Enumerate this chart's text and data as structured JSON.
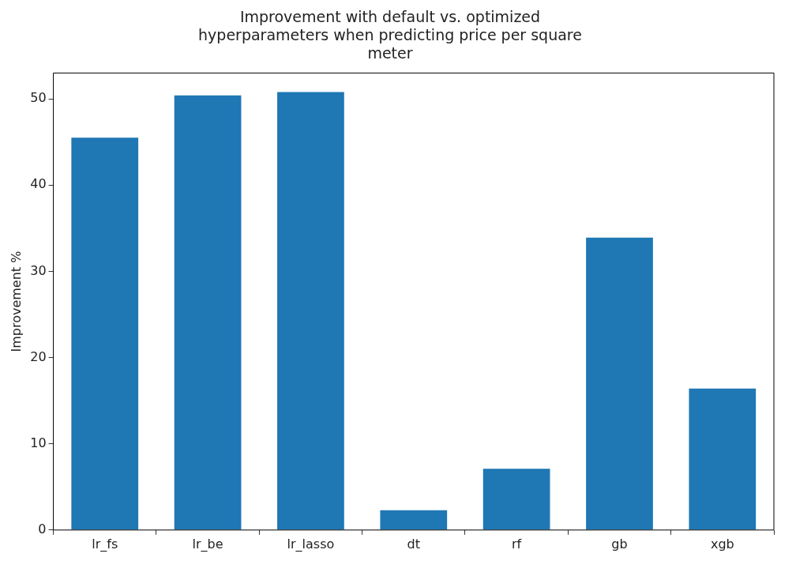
{
  "chart_data": {
    "type": "bar",
    "title": "Improvement with default vs. optimized hyperparameters when predicting price per square meter",
    "ylabel": "Improvement %",
    "categories": [
      "lr_fs",
      "lr_be",
      "lr_lasso",
      "dt",
      "rf",
      "gb",
      "xgb"
    ],
    "values": [
      45.5,
      50.4,
      50.8,
      2.3,
      7.1,
      33.9,
      16.4
    ],
    "color": "#1f77b4",
    "ylim": [
      0,
      53
    ],
    "yticks": [
      0,
      10,
      20,
      30,
      40,
      50
    ],
    "grid": false,
    "legend": false
  }
}
